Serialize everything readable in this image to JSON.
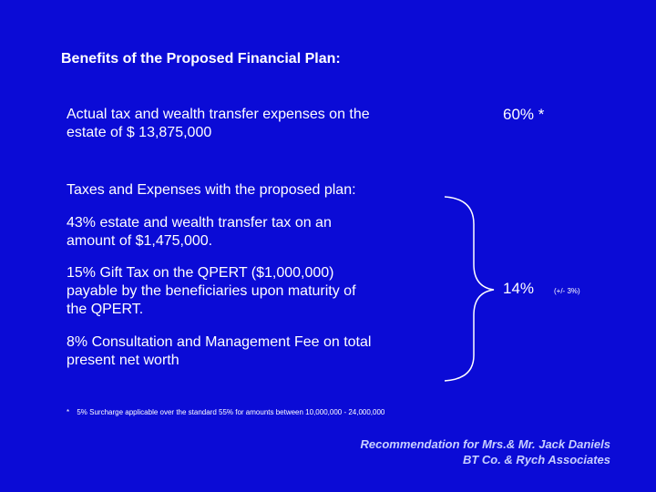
{
  "slide": {
    "title": "Benefits of the Proposed Financial Plan:",
    "actual": {
      "line1": "Actual tax and wealth transfer expenses on the",
      "line2": "estate of $ 13,875,000",
      "percent": "60% *"
    },
    "proposed": {
      "heading": "Taxes and Expenses with the proposed plan:",
      "item1_line1": "43% estate and wealth transfer tax on an",
      "item1_line2": "amount of $1,475,000.",
      "item2_line1": "15% Gift Tax on the QPERT ($1,000,000)",
      "item2_line2": "payable by the beneficiaries upon maturity of",
      "item2_line3": "the QPERT.",
      "item3_line1": "8% Consultation and Management Fee on total",
      "item3_line2": "present net worth",
      "percent": "14%",
      "tolerance": "(+/- 3%)"
    },
    "footnote": {
      "marker": "*",
      "text": "5% Surcharge applicable over the standard 55% for amounts between 10,000,000 - 24,000,000"
    },
    "credit": {
      "line1": "Recommendation for Mrs.& Mr. Jack Daniels",
      "line2": "BT Co. & Rych Associates"
    }
  },
  "colors": {
    "background": "#0b0bd6",
    "text": "#ffffff",
    "credit": "#c8d0ff"
  }
}
